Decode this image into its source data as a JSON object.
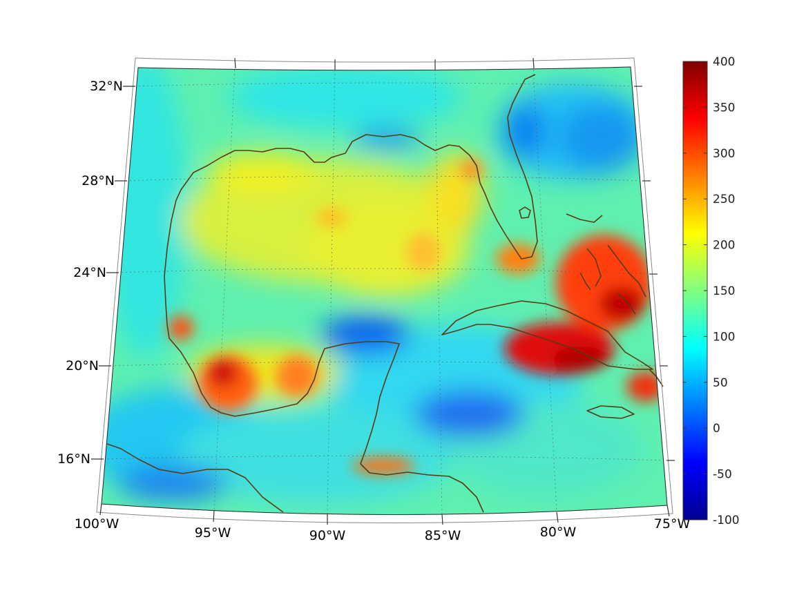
{
  "map": {
    "projection": "conic",
    "graticule": "dotted",
    "coastline_color": "#5a3a12",
    "colormap": "jet",
    "lat_labels": [
      "32°N",
      "28°N",
      "24°N",
      "20°N",
      "16°N"
    ],
    "lon_labels": [
      "100°W",
      "95°W",
      "90°W",
      "85°W",
      "80°W",
      "75°W"
    ]
  },
  "colorbar": {
    "min": -100,
    "max": 400,
    "tick_labels": [
      "400",
      "350",
      "300",
      "250",
      "200",
      "150",
      "100",
      "50",
      "0",
      "-50",
      "-100"
    ]
  },
  "features": [
    {
      "name": "Texas-Louisiana coast band",
      "level": 200
    },
    {
      "name": "Bay of Campeche maximum",
      "level": 330
    },
    {
      "name": "Bahamas maximum",
      "level": 380
    },
    {
      "name": "South of Cuba maximum",
      "level": 360
    },
    {
      "name": "Yucatan Channel minimum",
      "level": 10
    },
    {
      "name": "Western Caribbean minimum",
      "level": 30
    },
    {
      "name": "Atlantic off Florida minimum",
      "level": 20
    }
  ]
}
